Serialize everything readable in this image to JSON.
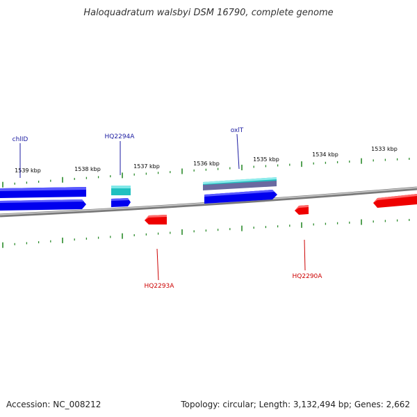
{
  "title": "Haloquadratum walsbyi DSM 16790, complete genome",
  "footer": {
    "accession": "Accession: NC_008212",
    "summary": "Topology: circular; Length: 3,132,494 bp; Genes: 2,662"
  },
  "colors": {
    "forward_gene": "#0000ee",
    "forward_gene_light": "#5a5aff",
    "reverse_gene": "#ee0000",
    "rna_gene": "#20c0c0",
    "misc_gene": "#6a6aa0",
    "tick": "#2a8a2a",
    "backbone": "#888888",
    "forward_label": "#1a1aa0",
    "reverse_label": "#cc0000"
  },
  "scale": {
    "unit": "kbp",
    "tick_labels": [
      "1539 kbp",
      "1538 kbp",
      "1537 kbp",
      "1536 kbp",
      "1535 kbp",
      "1534 kbp",
      "1533 kbp"
    ]
  },
  "genes": {
    "forward_labels": [
      "chlID",
      "HQ2294A",
      "oxlT"
    ],
    "reverse_labels": [
      "HQ2293A",
      "HQ2290A"
    ]
  }
}
